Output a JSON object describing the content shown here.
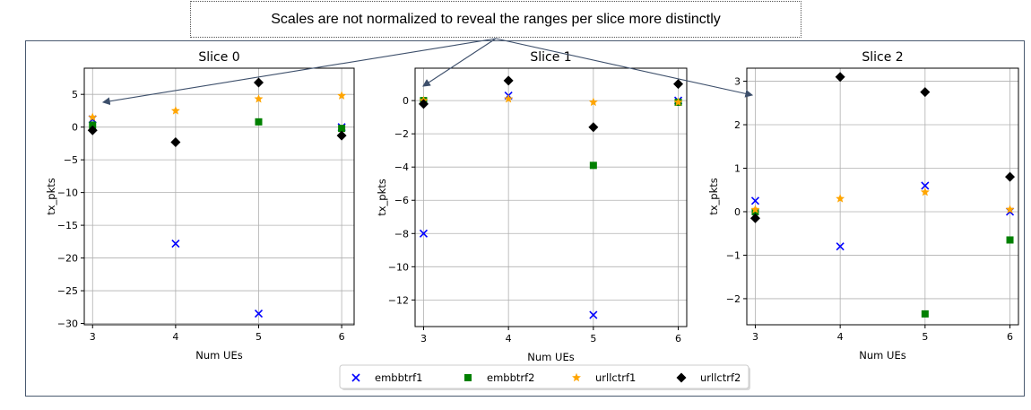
{
  "annotation": {
    "text": "Scales are not normalized to reveal the ranges per slice more distinctly"
  },
  "colors": {
    "embbtrf1": "#0000ff",
    "embbtrf2": "#008000",
    "urllctrf1": "#ffa500",
    "urllctrf2": "#000000",
    "frame": "#4a5a70"
  },
  "chart_data": [
    {
      "type": "scatter",
      "title": "Slice 0",
      "xlabel": "Num UEs",
      "ylabel": "tx_pkts",
      "x": [
        3,
        4,
        5,
        6
      ],
      "xlim": [
        2.9,
        6.15
      ],
      "ylim": [
        -30.2,
        9.0
      ],
      "xticks": [
        "3",
        "4",
        "5",
        "6"
      ],
      "yticks": [
        "5",
        "0",
        "−5",
        "−10",
        "−15",
        "−20",
        "−25",
        "−30"
      ],
      "ytick_values": [
        5,
        0,
        -5,
        -10,
        -15,
        -20,
        -25,
        -30
      ],
      "grid": true,
      "series": [
        {
          "name": "embbtrf1",
          "values": [
            1.2,
            -17.8,
            -28.5,
            0.0
          ]
        },
        {
          "name": "embbtrf2",
          "values": [
            0.3,
            null,
            0.8,
            -0.2
          ]
        },
        {
          "name": "urllctrf1",
          "values": [
            1.5,
            2.5,
            4.3,
            4.8
          ]
        },
        {
          "name": "urllctrf2",
          "values": [
            -0.5,
            -2.3,
            6.8,
            -1.3
          ]
        }
      ]
    },
    {
      "type": "scatter",
      "title": "Slice 1",
      "xlabel": "Num UEs",
      "ylabel": "tx_pkts",
      "x": [
        3,
        4,
        5,
        6
      ],
      "xlim": [
        2.9,
        6.1
      ],
      "ylim": [
        -13.6,
        1.95
      ],
      "xticks": [
        "3",
        "4",
        "5",
        "6"
      ],
      "yticks": [
        "0",
        "−2",
        "−4",
        "−6",
        "−8",
        "−10",
        "−12"
      ],
      "ytick_values": [
        0,
        -2,
        -4,
        -6,
        -8,
        -10,
        -12
      ],
      "grid": true,
      "series": [
        {
          "name": "embbtrf1",
          "values": [
            -8.0,
            0.3,
            -12.9,
            0.0
          ]
        },
        {
          "name": "embbtrf2",
          "values": [
            0.0,
            null,
            -3.9,
            -0.1
          ]
        },
        {
          "name": "urllctrf1",
          "values": [
            0.0,
            0.1,
            -0.1,
            -0.1
          ]
        },
        {
          "name": "urllctrf2",
          "values": [
            -0.2,
            1.2,
            -1.6,
            1.0
          ]
        }
      ]
    },
    {
      "type": "scatter",
      "title": "Slice 2",
      "xlabel": "Num UEs",
      "ylabel": "tx_pkts",
      "x": [
        3,
        4,
        5,
        6
      ],
      "xlim": [
        2.9,
        6.1
      ],
      "ylim": [
        -2.6,
        3.3
      ],
      "xticks": [
        "3",
        "4",
        "5",
        "6"
      ],
      "yticks": [
        "3",
        "2",
        "1",
        "0",
        "−1",
        "−2"
      ],
      "ytick_values": [
        3,
        2,
        1,
        0,
        -1,
        -2
      ],
      "grid": true,
      "series": [
        {
          "name": "embbtrf1",
          "values": [
            0.25,
            -0.8,
            0.6,
            0.0
          ]
        },
        {
          "name": "embbtrf2",
          "values": [
            0.0,
            null,
            -2.35,
            -0.65
          ]
        },
        {
          "name": "urllctrf1",
          "values": [
            0.05,
            0.3,
            0.45,
            0.05
          ]
        },
        {
          "name": "urllctrf2",
          "values": [
            -0.15,
            3.1,
            2.75,
            0.8
          ]
        }
      ]
    }
  ],
  "legend": {
    "placement": "bottom-center",
    "items": [
      {
        "label": "embbtrf1",
        "marker": "x"
      },
      {
        "label": "embbtrf2",
        "marker": "square"
      },
      {
        "label": "urllctrf1",
        "marker": "star"
      },
      {
        "label": "urllctrf2",
        "marker": "diamond"
      }
    ]
  }
}
